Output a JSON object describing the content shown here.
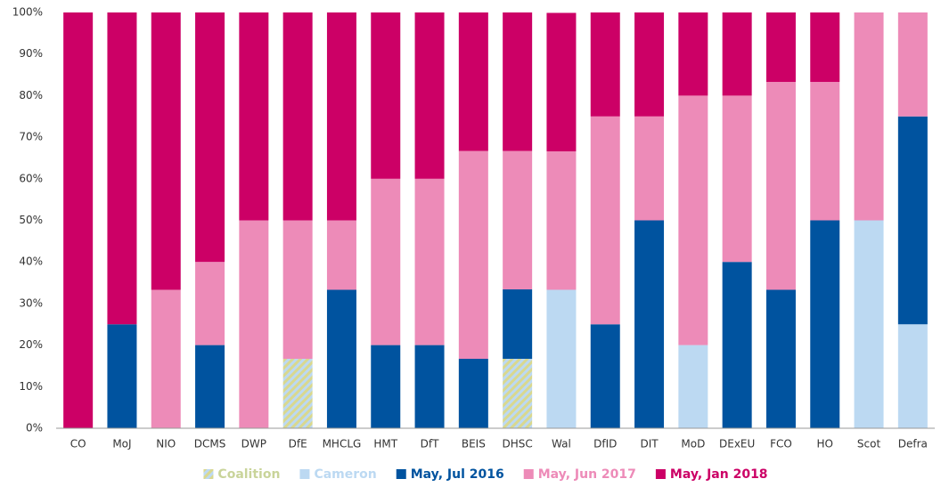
{
  "chart_data": {
    "type": "stacked_bar",
    "categories": [
      "CO",
      "MoJ",
      "NIO",
      "DCMS",
      "DWP",
      "DfE",
      "MHCLG",
      "HMT",
      "DfT",
      "BEIS",
      "DHSC",
      "Wal",
      "DfID",
      "DIT",
      "MoD",
      "DExEU",
      "FCO",
      "HO",
      "Scot",
      "Defra"
    ],
    "series": [
      {
        "name": "Coalition",
        "color": "#c9d49a",
        "hatch": true,
        "values": [
          0,
          0,
          0,
          0,
          0,
          16.7,
          0,
          0,
          0,
          0,
          16.7,
          0,
          0,
          0,
          0,
          0,
          0,
          0,
          0,
          0
        ]
      },
      {
        "name": "Cameron",
        "color": "#bcd9f2",
        "values": [
          0,
          0,
          0,
          0,
          0,
          0,
          0,
          0,
          0,
          0,
          0,
          33.3,
          0,
          0,
          20,
          0,
          0,
          0,
          50,
          25
        ]
      },
      {
        "name": "May, Jul 2016",
        "color": "#00539f",
        "values": [
          0,
          25,
          0,
          20,
          0,
          0,
          33.3,
          20,
          20,
          16.7,
          16.7,
          0,
          25,
          50,
          0,
          40,
          33.3,
          50,
          0,
          50
        ]
      },
      {
        "name": "May, Jun 2017",
        "color": "#ed8bb8",
        "values": [
          0,
          0,
          33.3,
          20,
          50,
          33.3,
          16.7,
          40,
          40,
          50,
          33.3,
          33.3,
          50,
          25,
          60,
          40,
          50,
          33.3,
          50,
          25
        ]
      },
      {
        "name": "May, Jan 2018",
        "color": "#cc0066",
        "values": [
          100,
          75,
          66.7,
          60,
          50,
          50,
          50,
          40,
          40,
          33.3,
          33.3,
          33.3,
          25,
          25,
          20,
          20,
          16.7,
          16.7,
          0,
          0
        ]
      }
    ],
    "ylim": [
      0,
      100
    ],
    "yticks": [
      {
        "value": 0,
        "label": "0%"
      },
      {
        "value": 10,
        "label": "10%"
      },
      {
        "value": 20,
        "label": "20%"
      },
      {
        "value": 30,
        "label": "30%"
      },
      {
        "value": 40,
        "label": "40%"
      },
      {
        "value": 50,
        "label": "50%"
      },
      {
        "value": 60,
        "label": "60%"
      },
      {
        "value": 70,
        "label": "70%"
      },
      {
        "value": 80,
        "label": "80%"
      },
      {
        "value": 90,
        "label": "90%"
      },
      {
        "value": 100,
        "label": "100%"
      }
    ],
    "grid": false,
    "legend": "bottom"
  }
}
